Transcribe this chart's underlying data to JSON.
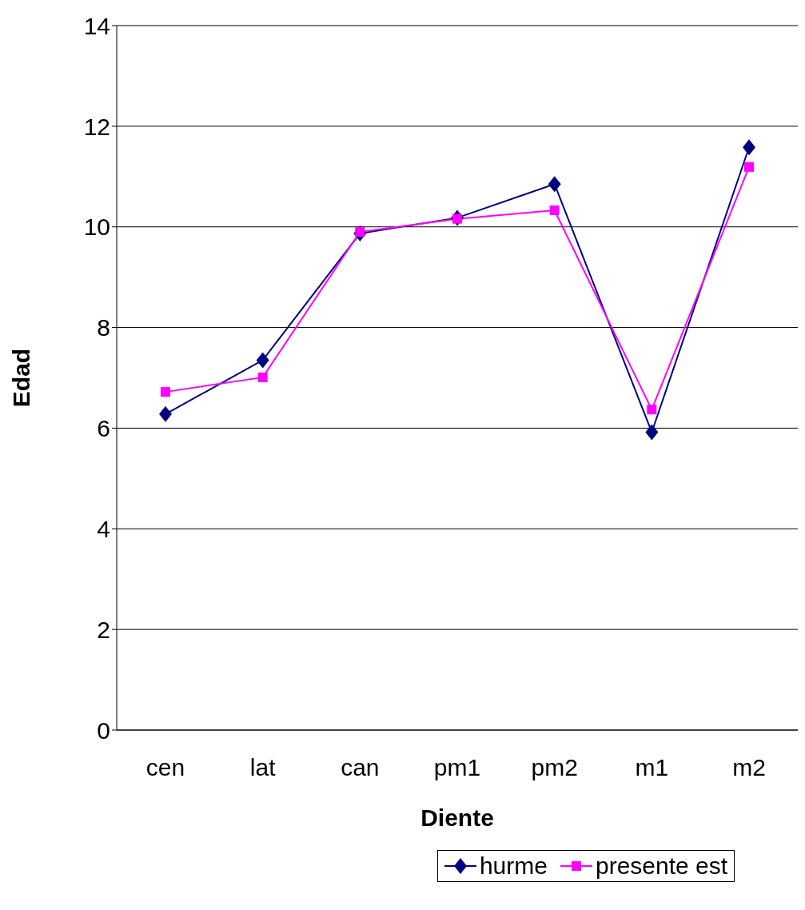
{
  "chart_data": {
    "type": "line",
    "xlabel": "Diente",
    "ylabel": "Edad",
    "categories": [
      "cen",
      "lat",
      "can",
      "pm1",
      "pm2",
      "m1",
      "m2"
    ],
    "series": [
      {
        "name": "hurme",
        "color": "#000080",
        "marker": "diamond",
        "values": [
          6.28,
          7.35,
          9.87,
          10.18,
          10.85,
          5.92,
          11.58
        ]
      },
      {
        "name": "presente est",
        "color": "#ff00ff",
        "marker": "square",
        "values": [
          6.72,
          7.01,
          9.9,
          10.16,
          10.33,
          6.37,
          11.19
        ]
      }
    ],
    "ylim": [
      0,
      14
    ],
    "yticks": [
      0,
      2,
      4,
      6,
      8,
      10,
      12,
      14
    ],
    "grid": "y",
    "legend": "bottom"
  }
}
